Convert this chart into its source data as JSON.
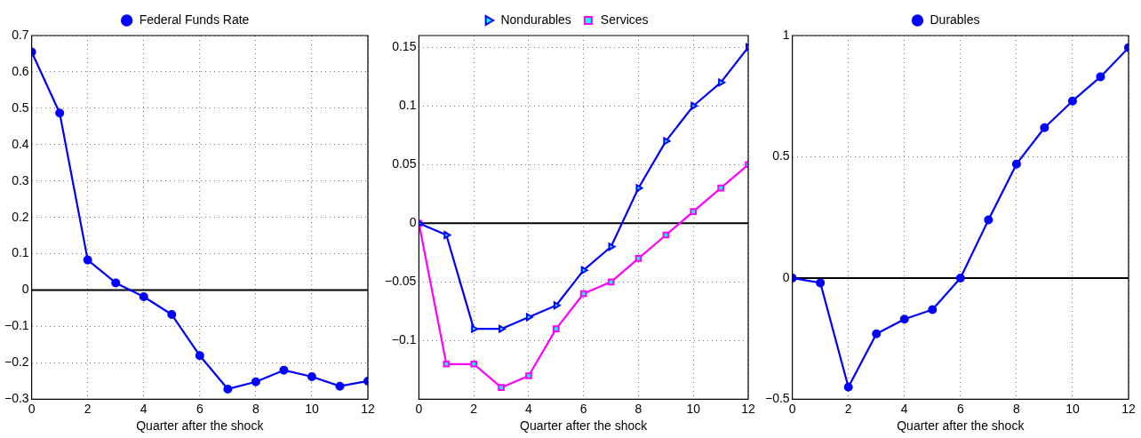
{
  "chart_data": [
    {
      "type": "line",
      "xlabel": "Quarter after the shock",
      "x": [
        0,
        1,
        2,
        3,
        4,
        5,
        6,
        7,
        8,
        9,
        10,
        11,
        12
      ],
      "xlim": [
        0,
        12
      ],
      "xticks": [
        0,
        2,
        4,
        6,
        8,
        10,
        12
      ],
      "ylim": [
        -0.3,
        0.7
      ],
      "yticks": [
        -0.3,
        -0.2,
        -0.1,
        0,
        0.1,
        0.2,
        0.3,
        0.4,
        0.5,
        0.6,
        0.7
      ],
      "grid": true,
      "legend": "top",
      "ref_lines": [
        {
          "axis": "y",
          "value": 0,
          "color": "#000000"
        }
      ],
      "series": [
        {
          "name": "Federal Funds Rate",
          "color": "#0000ff",
          "marker": "circle",
          "values": [
            0.655,
            0.487,
            0.083,
            0.02,
            -0.018,
            -0.067,
            -0.18,
            -0.272,
            -0.252,
            -0.22,
            -0.238,
            -0.264,
            -0.25
          ]
        }
      ]
    },
    {
      "type": "line",
      "xlabel": "Quarter after the shock",
      "x": [
        0,
        1,
        2,
        3,
        4,
        5,
        6,
        7,
        8,
        9,
        10,
        11,
        12
      ],
      "xlim": [
        0,
        12
      ],
      "xticks": [
        0,
        2,
        4,
        6,
        8,
        10,
        12
      ],
      "ylim": [
        -0.15,
        0.16
      ],
      "yticks": [
        -0.1,
        -0.05,
        0,
        0.05,
        0.1,
        0.15
      ],
      "grid": true,
      "legend": "top",
      "ref_lines": [
        {
          "axis": "y",
          "value": 0,
          "color": "#000000"
        }
      ],
      "series": [
        {
          "name": "Nondurables",
          "color": "#0000ff",
          "marker": "triangle",
          "values": [
            0,
            -0.01,
            -0.09,
            -0.09,
            -0.08,
            -0.07,
            -0.04,
            -0.02,
            0.03,
            0.07,
            0.1,
            0.12,
            0.15
          ]
        },
        {
          "name": "Services",
          "color": "#ff00ff",
          "marker": "square",
          "values": [
            0,
            -0.12,
            -0.12,
            -0.14,
            -0.13,
            -0.09,
            -0.06,
            -0.05,
            -0.03,
            -0.01,
            0.01,
            0.03,
            0.05
          ]
        }
      ]
    },
    {
      "type": "line",
      "xlabel": "Quarter after the shock",
      "x": [
        0,
        1,
        2,
        3,
        4,
        5,
        6,
        7,
        8,
        9,
        10,
        11,
        12
      ],
      "xlim": [
        0,
        12
      ],
      "xticks": [
        0,
        2,
        4,
        6,
        8,
        10,
        12
      ],
      "ylim": [
        -0.5,
        1
      ],
      "yticks": [
        -0.5,
        0,
        0.5,
        1
      ],
      "grid": true,
      "legend": "top",
      "ref_lines": [
        {
          "axis": "y",
          "value": 0,
          "color": "#000000"
        }
      ],
      "series": [
        {
          "name": "Durables",
          "color": "#0000ff",
          "marker": "circle",
          "values": [
            0,
            -0.02,
            -0.45,
            -0.23,
            -0.17,
            -0.13,
            0,
            0.24,
            0.47,
            0.62,
            0.73,
            0.83,
            0.95
          ]
        }
      ]
    }
  ]
}
